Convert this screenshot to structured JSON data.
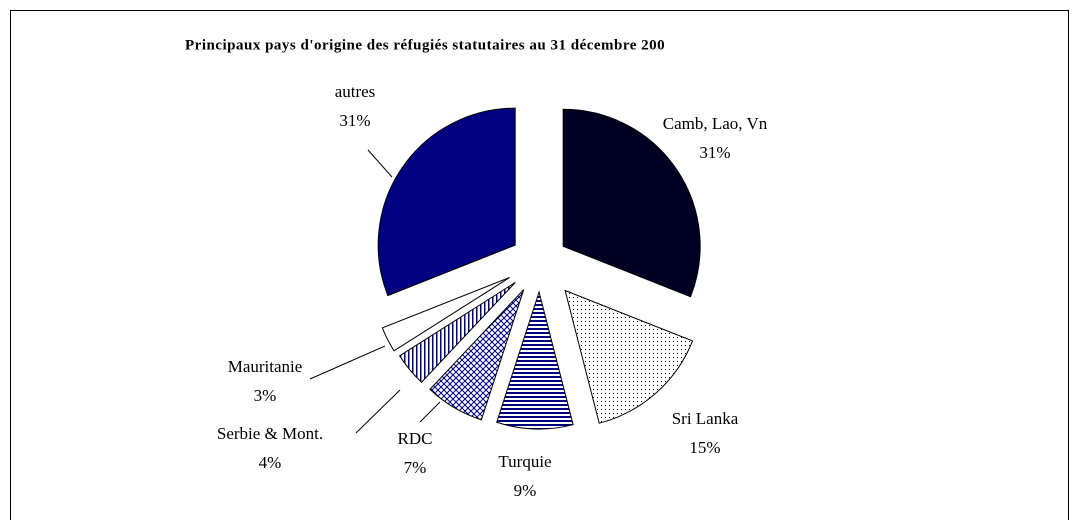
{
  "chart_data": {
    "type": "pie",
    "title": "Principaux pays d'origine des réfugiés statutaires au 31 décembre 200",
    "categories": [
      "Camb, Lao, Vn",
      "Sri Lanka",
      "Turquie",
      "RDC",
      "Serbie & Mont.",
      "Mauritanie",
      "autres"
    ],
    "values": [
      31,
      15,
      9,
      7,
      4,
      3,
      31
    ],
    "value_labels": [
      "31%",
      "15%",
      "9%",
      "7%",
      "4%",
      "3%",
      "31%"
    ],
    "colors": [
      "#000022",
      "#ffffff",
      "#000080",
      "#000080",
      "#000080",
      "#ffffff",
      "#000080"
    ],
    "patterns": [
      "solid",
      "dots",
      "hlines",
      "crosshatch",
      "vlines",
      "solid",
      "solid"
    ]
  }
}
